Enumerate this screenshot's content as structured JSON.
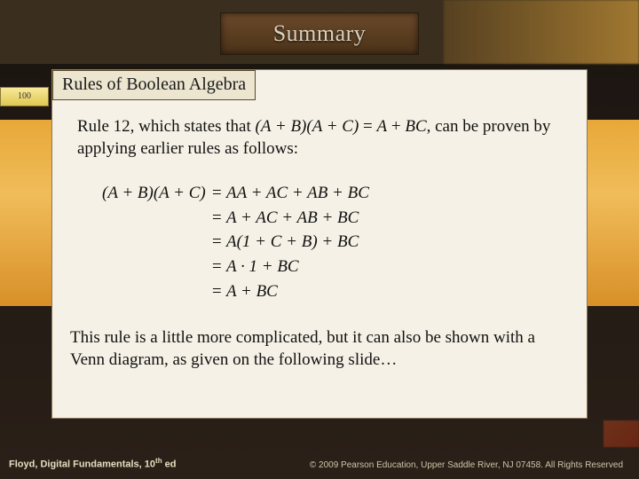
{
  "slide": {
    "title": "Summary",
    "subtitle": "Rules of Boolean Algebra",
    "yellow_tab": "100",
    "intro_pre": "Rule 12, which states that ",
    "intro_formula_lhs": "(A + B)(A + C)",
    "intro_eq": " = ",
    "intro_formula_rhs_a": "A",
    "intro_plus": " + ",
    "intro_formula_rhs_bc": "BC",
    "intro_post": ", can be proven by applying earlier rules as follows:",
    "proof_lhs": "(A + B)(A + C)",
    "proof_lines": [
      "= AA + AC + AB + BC",
      "= A + AC + AB + BC",
      "= A(1 + C + B) + BC",
      "= A · 1 + BC",
      "= A + BC"
    ],
    "closing": "This rule is a little more complicated, but it can also be shown with a Venn diagram, as given on the following slide…",
    "footer_left_pre": "Floyd, Digital Fundamentals, 10",
    "footer_left_sup": "th",
    "footer_left_post": " ed",
    "footer_right": "© 2009 Pearson Education, Upper Saddle River, NJ 07458. All Rights Reserved",
    "colors": {
      "panel_bg": "#f5f1e6",
      "orange_band": "#e8a838",
      "title_plate": "#5a3e22",
      "title_text": "#d8d0c0",
      "body_text": "#111111",
      "footer_text": "#e8dcc0"
    },
    "fonts": {
      "title_size_pt": 26,
      "subtitle_size_pt": 20,
      "body_size_pt": 19,
      "footer_left_size_pt": 11,
      "footer_right_size_pt": 10
    }
  }
}
